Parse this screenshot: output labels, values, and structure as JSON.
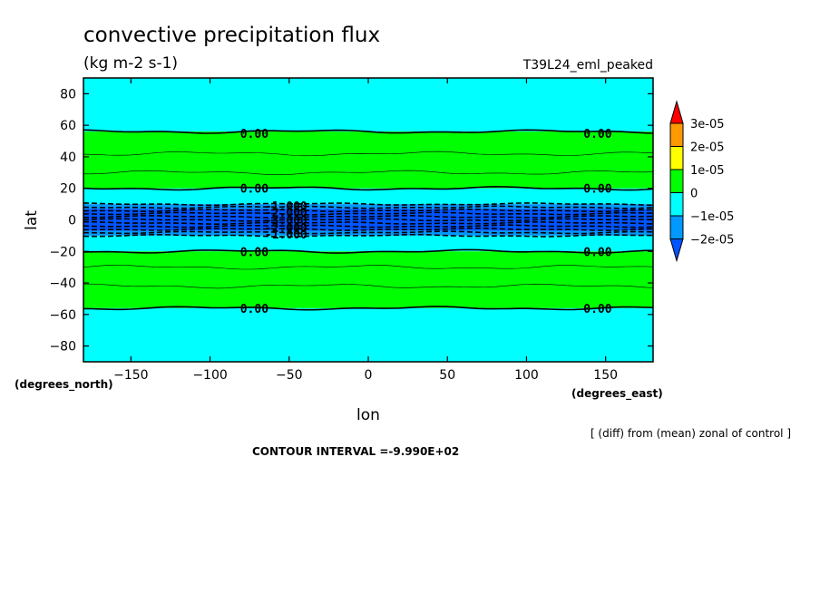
{
  "chart_data": {
    "type": "heatmap",
    "title": "convective precipitation flux",
    "subtitle": "(kg m-2 s-1)",
    "run_label": "T39L24_eml_peaked",
    "xlabel": "lon",
    "ylabel": "lat",
    "x_units": "(degrees_east)",
    "y_units": "(degrees_north)",
    "xlim": [
      -180,
      180
    ],
    "ylim": [
      -90,
      90
    ],
    "x_ticks": [
      -150,
      -100,
      -50,
      0,
      50,
      100,
      150
    ],
    "y_ticks": [
      80,
      60,
      40,
      20,
      0,
      -20,
      -40,
      -60,
      -80
    ],
    "footnote": "[ (diff) from (mean) zonal of control ]",
    "contour_interval": "CONTOUR INTERVAL =-9.990E+02",
    "colorbar": {
      "labels": [
        "3e-05",
        "2e-05",
        "1e-05",
        "0",
        "-1e-05",
        "-2e-05"
      ],
      "colors": [
        "#ff0000",
        "#ff9900",
        "#ffff00",
        "#00ff00",
        "#00ffff",
        "#0099ff",
        "#0055ff"
      ]
    },
    "bands": [
      {
        "lat_min": 56,
        "lat_max": 90,
        "level": "-1e-05 to 0",
        "color": "#00ffff"
      },
      {
        "lat_min": 20,
        "lat_max": 56,
        "level": "0 to 1e-05",
        "color": "#00ff00"
      },
      {
        "lat_min": 10,
        "lat_max": 20,
        "level": "-1e-05 to 0",
        "color": "#00ffff"
      },
      {
        "lat_min": 7,
        "lat_max": 10,
        "level": "-2e-05 to -1e-05",
        "color": "#0099ff"
      },
      {
        "lat_min": -7,
        "lat_max": 7,
        "level": "below -2e-05",
        "color": "#0055ff"
      },
      {
        "lat_min": -10,
        "lat_max": -7,
        "level": "-2e-05 to -1e-05",
        "color": "#0099ff"
      },
      {
        "lat_min": -20,
        "lat_max": -10,
        "level": "-1e-05 to 0",
        "color": "#00ffff"
      },
      {
        "lat_min": -56,
        "lat_max": -20,
        "level": "0 to 1e-05",
        "color": "#00ff00"
      },
      {
        "lat_min": -90,
        "lat_max": -56,
        "level": "-1e-05 to 0",
        "color": "#00ffff"
      }
    ],
    "contour_labels": [
      {
        "text": "0.00",
        "lon": -72,
        "lat": 55
      },
      {
        "text": "0.00",
        "lon": 145,
        "lat": 55
      },
      {
        "text": "0.00",
        "lon": -72,
        "lat": 20
      },
      {
        "text": "0.00",
        "lon": 145,
        "lat": 20
      },
      {
        "text": "0.00",
        "lon": -72,
        "lat": -20
      },
      {
        "text": "0.00",
        "lon": 145,
        "lat": -20
      },
      {
        "text": "0.00",
        "lon": -72,
        "lat": -56
      },
      {
        "text": "0.00",
        "lon": 145,
        "lat": -56
      },
      {
        "text": "-1.000",
        "lon": -52,
        "lat": 9
      },
      {
        "text": "-2.000",
        "lon": -52,
        "lat": 5
      },
      {
        "text": "-3.000",
        "lon": -52,
        "lat": 0
      },
      {
        "text": "-2.000",
        "lon": -52,
        "lat": -5
      },
      {
        "text": "-1.000",
        "lon": -52,
        "lat": -9
      }
    ]
  }
}
